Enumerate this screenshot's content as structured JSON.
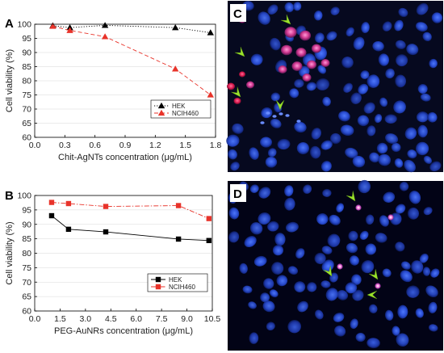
{
  "chart_data": [
    {
      "panel": "A",
      "type": "line",
      "xlabel": "Chit-AgNTs concentration (μg/mL)",
      "ylabel": "Cell viability (%)",
      "xlim": [
        0.0,
        1.8
      ],
      "ylim": [
        60,
        100
      ],
      "xticks": [
        "0.0",
        "0.3",
        "0.6",
        "0.9",
        "1.2",
        "1.5",
        "1.8"
      ],
      "yticks": [
        "60",
        "65",
        "70",
        "75",
        "80",
        "85",
        "90",
        "95",
        "100"
      ],
      "legend_position": "lower-right",
      "series": [
        {
          "name": "HEK",
          "color": "#000000",
          "marker": "triangle",
          "line": "dotted",
          "x": [
            0.18,
            0.35,
            0.7,
            1.4,
            1.75
          ],
          "y": [
            99.5,
            98.8,
            99.6,
            98.8,
            97.0
          ]
        },
        {
          "name": "NCIH460",
          "color": "#e8332a",
          "marker": "triangle",
          "line": "dashed",
          "x": [
            0.18,
            0.35,
            0.7,
            1.4,
            1.75
          ],
          "y": [
            99.3,
            97.8,
            95.6,
            84.2,
            75.0
          ]
        }
      ]
    },
    {
      "panel": "B",
      "type": "line",
      "xlabel": "PEG-AuNRs concentration (μg/mL)",
      "ylabel": "Cell viability (%)",
      "xlim": [
        0.0,
        10.5
      ],
      "ylim": [
        60,
        100
      ],
      "xticks": [
        "0.0",
        "1.5",
        "3.0",
        "4.5",
        "6.0",
        "7.5",
        "9.0",
        "10.5"
      ],
      "yticks": [
        "60",
        "65",
        "70",
        "75",
        "80",
        "85",
        "90",
        "95",
        "100"
      ],
      "legend_position": "lower-right",
      "series": [
        {
          "name": "HEK",
          "color": "#000000",
          "marker": "square",
          "line": "solid",
          "x": [
            1.0,
            2.0,
            4.2,
            8.5,
            10.3
          ],
          "y": [
            93.0,
            88.3,
            87.4,
            84.9,
            84.4
          ]
        },
        {
          "name": "NCIH460",
          "color": "#e8332a",
          "marker": "square",
          "line": "dashdot",
          "x": [
            1.0,
            2.0,
            4.2,
            8.5,
            10.3
          ],
          "y": [
            97.6,
            97.2,
            96.2,
            96.5,
            92.0
          ]
        }
      ]
    }
  ],
  "panels": {
    "A": "A",
    "B": "B",
    "C": "C",
    "D": "D"
  }
}
